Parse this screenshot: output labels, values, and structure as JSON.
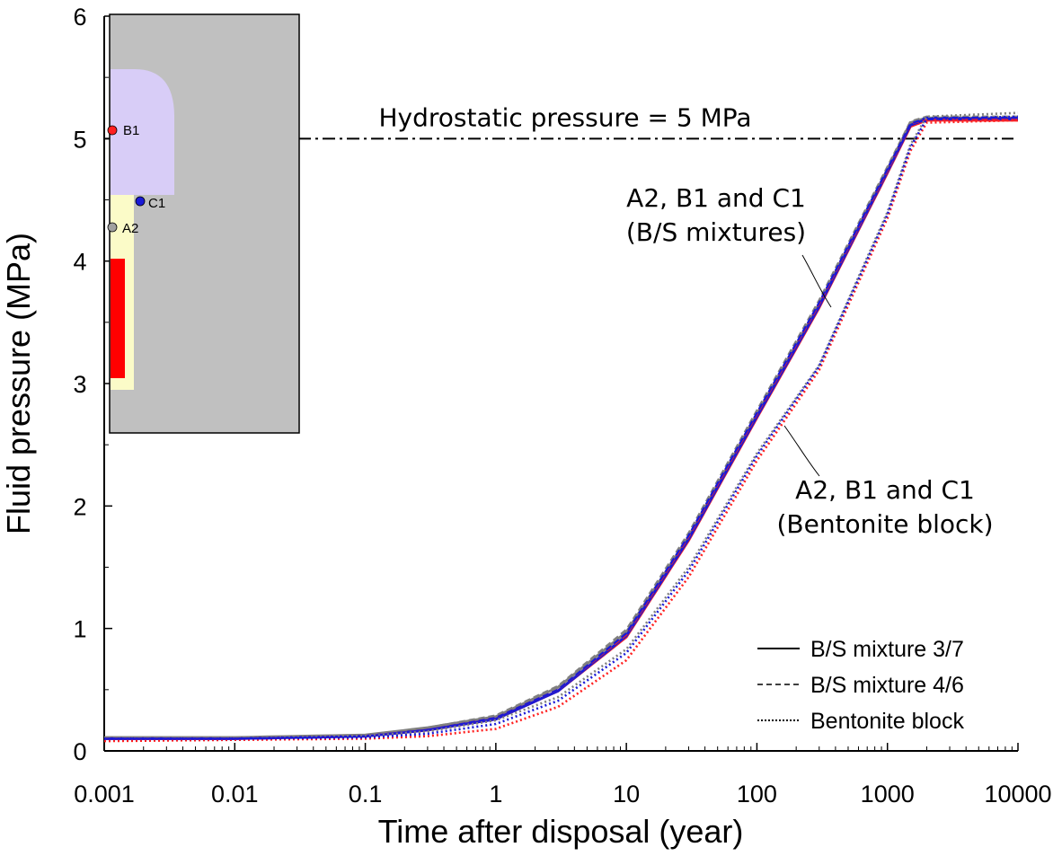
{
  "chart_data": {
    "type": "line",
    "xlabel": "Time after disposal (year)",
    "ylabel": "Fluid pressure (MPa)",
    "xscale": "log",
    "xlim": [
      0.001,
      10000
    ],
    "ylim": [
      0,
      6
    ],
    "x_ticks": [
      0.001,
      0.01,
      0.1,
      1,
      10,
      100,
      1000,
      10000
    ],
    "x_tick_labels": [
      "0.001",
      "0.01",
      "0.1",
      "1",
      "10",
      "100",
      "1000",
      "10000"
    ],
    "y_ticks": [
      0,
      1,
      2,
      3,
      4,
      5,
      6
    ],
    "y_tick_labels": [
      "0",
      "1",
      "2",
      "3",
      "4",
      "5",
      "6"
    ],
    "reference_line": {
      "y": 5,
      "label": "Hydrostatic pressure = 5 MPa",
      "style": "dash-dot"
    },
    "annotations": [
      {
        "line1": "A2, B1 and C1",
        "line2": "(B/S mixtures)",
        "points_to": "B/S mixtures"
      },
      {
        "line1": "A2, B1 and C1",
        "line2": "(Bentonite block)",
        "points_to": "Bentonite block"
      }
    ],
    "legend": [
      {
        "label": "B/S mixture 3/7",
        "style": "solid"
      },
      {
        "label": "B/S mixture 4/6",
        "style": "dashed"
      },
      {
        "label": "Bentonite block",
        "style": "dotted"
      }
    ],
    "legend_position": "bottom-right",
    "point_colors": {
      "A2": "#808080",
      "B1": "#ff2020",
      "C1": "#1a1ad6"
    },
    "series": [
      {
        "name": "A2 B/S mixture 3/7",
        "point": "A2",
        "group": "mixture",
        "style": "solid",
        "color": "#808080",
        "x": [
          0.001,
          0.01,
          0.1,
          0.3,
          1,
          3,
          10,
          30,
          100,
          300,
          1000,
          1500,
          2000,
          10000
        ],
        "y": [
          0.11,
          0.11,
          0.13,
          0.19,
          0.28,
          0.52,
          0.97,
          1.75,
          2.75,
          3.65,
          4.75,
          5.13,
          5.17,
          5.17
        ]
      },
      {
        "name": "B1 B/S mixture 3/7",
        "point": "B1",
        "group": "mixture",
        "style": "solid",
        "color": "#ff2020",
        "x": [
          0.001,
          0.01,
          0.1,
          0.3,
          1,
          3,
          10,
          30,
          100,
          300,
          1000,
          1500,
          2000,
          10000
        ],
        "y": [
          0.1,
          0.1,
          0.12,
          0.17,
          0.26,
          0.49,
          0.93,
          1.72,
          2.72,
          3.62,
          4.72,
          5.1,
          5.15,
          5.15
        ]
      },
      {
        "name": "C1 B/S mixture 3/7",
        "point": "C1",
        "group": "mixture",
        "style": "solid",
        "color": "#1a1ad6",
        "x": [
          0.001,
          0.01,
          0.1,
          0.3,
          1,
          3,
          10,
          30,
          100,
          300,
          1000,
          1500,
          2000,
          10000
        ],
        "y": [
          0.1,
          0.1,
          0.12,
          0.17,
          0.26,
          0.49,
          0.94,
          1.73,
          2.73,
          3.63,
          4.73,
          5.11,
          5.16,
          5.16
        ]
      },
      {
        "name": "A2 B/S mixture 4/6",
        "point": "A2",
        "group": "mixture",
        "style": "dashed",
        "color": "#808080",
        "x": [
          0.001,
          0.01,
          0.1,
          0.3,
          1,
          3,
          10,
          30,
          100,
          300,
          1000,
          1500,
          2000,
          10000
        ],
        "y": [
          0.11,
          0.11,
          0.13,
          0.19,
          0.29,
          0.53,
          0.99,
          1.78,
          2.78,
          3.68,
          4.77,
          5.14,
          5.18,
          5.18
        ]
      },
      {
        "name": "B1 B/S mixture 4/6",
        "point": "B1",
        "group": "mixture",
        "style": "dashed",
        "color": "#ff2020",
        "x": [
          0.001,
          0.01,
          0.1,
          0.3,
          1,
          3,
          10,
          30,
          100,
          300,
          1000,
          1500,
          2000,
          10000
        ],
        "y": [
          0.1,
          0.1,
          0.12,
          0.17,
          0.27,
          0.5,
          0.95,
          1.75,
          2.75,
          3.65,
          4.74,
          5.12,
          5.16,
          5.16
        ]
      },
      {
        "name": "C1 B/S mixture 4/6",
        "point": "C1",
        "group": "mixture",
        "style": "dashed",
        "color": "#1a1ad6",
        "x": [
          0.001,
          0.01,
          0.1,
          0.3,
          1,
          3,
          10,
          30,
          100,
          300,
          1000,
          1500,
          2000,
          10000
        ],
        "y": [
          0.1,
          0.1,
          0.12,
          0.17,
          0.27,
          0.5,
          0.96,
          1.76,
          2.76,
          3.66,
          4.75,
          5.12,
          5.17,
          5.17
        ]
      },
      {
        "name": "A2 Bentonite block",
        "point": "A2",
        "group": "bentonite",
        "style": "dotted",
        "color": "#808080",
        "x": [
          0.001,
          0.01,
          0.1,
          0.3,
          1,
          3,
          10,
          30,
          100,
          300,
          1000,
          1500,
          2000,
          10000
        ],
        "y": [
          0.11,
          0.11,
          0.12,
          0.16,
          0.25,
          0.44,
          0.83,
          1.5,
          2.43,
          3.15,
          4.4,
          4.95,
          5.18,
          5.21
        ]
      },
      {
        "name": "B1 Bentonite block",
        "point": "B1",
        "group": "bentonite",
        "style": "dotted",
        "color": "#ff2020",
        "x": [
          0.001,
          0.01,
          0.1,
          0.3,
          1,
          3,
          10,
          30,
          100,
          300,
          1000,
          1500,
          2000,
          10000
        ],
        "y": [
          0.08,
          0.09,
          0.1,
          0.12,
          0.18,
          0.36,
          0.74,
          1.42,
          2.37,
          3.11,
          4.35,
          4.9,
          5.13,
          5.15
        ]
      },
      {
        "name": "C1 Bentonite block",
        "point": "C1",
        "group": "bentonite",
        "style": "dotted",
        "color": "#1a1ad6",
        "x": [
          0.001,
          0.01,
          0.1,
          0.3,
          1,
          3,
          10,
          30,
          100,
          300,
          1000,
          1500,
          2000,
          10000
        ],
        "y": [
          0.1,
          0.1,
          0.11,
          0.14,
          0.22,
          0.41,
          0.8,
          1.47,
          2.41,
          3.14,
          4.38,
          4.93,
          5.16,
          5.18
        ]
      }
    ]
  },
  "inset": {
    "labels": {
      "B1": "B1",
      "C1": "C1",
      "A2": "A2"
    },
    "colors": {
      "host_rock": "#c0c0c0",
      "backfill": "#d8cdf7",
      "buffer": "#fbfbc8",
      "canister": "#ff0000",
      "A2": "#a0a0a0",
      "B1": "#ff2020",
      "C1": "#1a1ad6"
    }
  }
}
